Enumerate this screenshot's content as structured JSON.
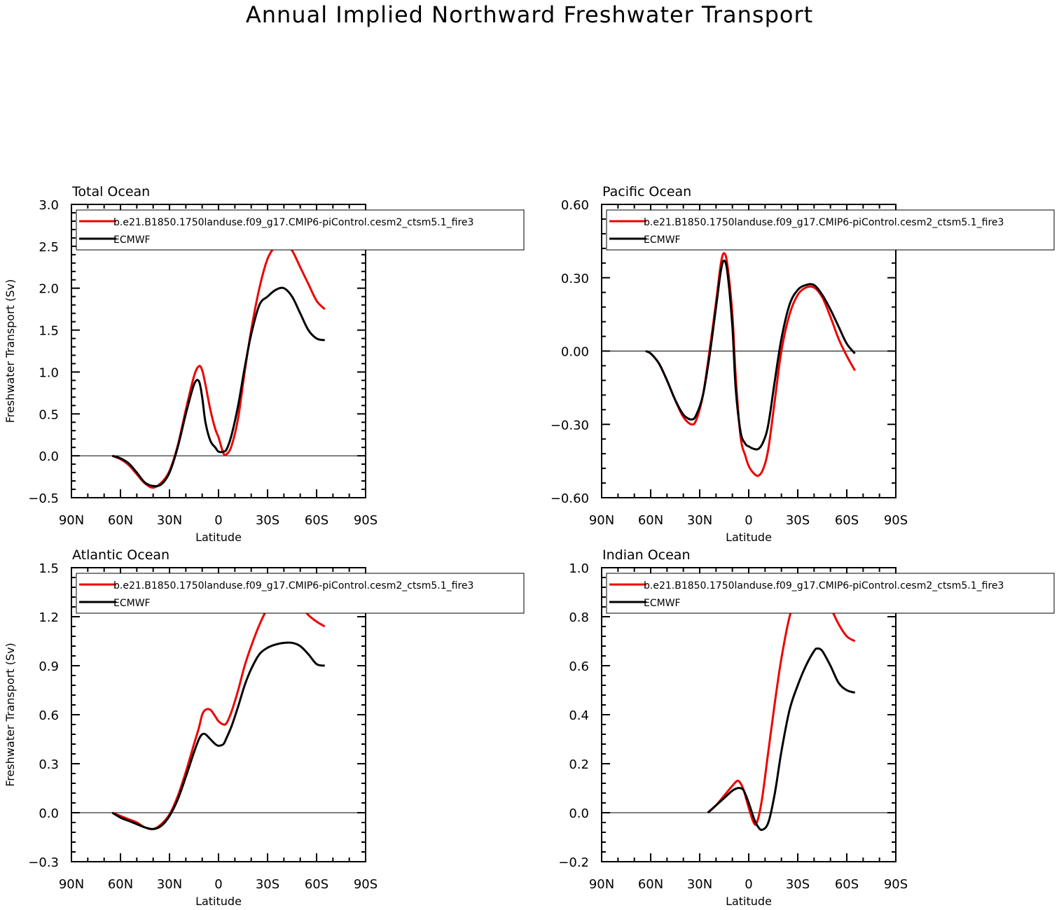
{
  "figure_title": "Annual Implied Northward Freshwater Transport",
  "colors": {
    "model": "#ee0000",
    "obs": "#000000"
  },
  "chart_data": [
    {
      "type": "line",
      "title": "Total Ocean",
      "xlabel": "Latitude",
      "ylabel": "Freshwater Transport (Sv)",
      "xlim": [
        90,
        -90
      ],
      "xticks": [
        90,
        60,
        30,
        0,
        -30,
        -60,
        -90
      ],
      "xtick_labels": [
        "90N",
        "60N",
        "30N",
        "0",
        "30S",
        "60S",
        "90S"
      ],
      "ylim": [
        -0.5,
        3.0
      ],
      "yticks": [
        -0.5,
        0.0,
        0.5,
        1.0,
        1.5,
        2.0,
        2.5,
        3.0
      ],
      "ytick_labels": [
        "−0.5",
        "0.0",
        "0.5",
        "1.0",
        "1.5",
        "2.0",
        "2.5",
        "3.0"
      ],
      "legend": {
        "placement": "top",
        "entries": [
          "b.e21.B1850.1750landuse.f09_g17.CMIP6-piControl.cesm2_ctsm5.1_fire3",
          "ECMWF"
        ]
      },
      "series": [
        {
          "name": "b.e21.B1850.1750landuse.f09_g17.CMIP6-piControl.cesm2_ctsm5.1_fire3",
          "x": [
            65,
            60,
            55,
            50,
            45,
            40,
            35,
            30,
            25,
            20,
            15,
            12,
            10,
            8,
            5,
            2,
            0,
            -3,
            -5,
            -8,
            -12,
            -16,
            -20,
            -25,
            -30,
            -35,
            -40,
            -45,
            -50,
            -55,
            -60,
            -65
          ],
          "y": [
            0.0,
            -0.04,
            -0.11,
            -0.22,
            -0.33,
            -0.38,
            -0.32,
            -0.18,
            0.12,
            0.55,
            0.95,
            1.07,
            1.02,
            0.85,
            0.55,
            0.32,
            0.22,
            0.03,
            0.02,
            0.12,
            0.45,
            1.0,
            1.5,
            2.0,
            2.35,
            2.5,
            2.55,
            2.45,
            2.25,
            2.05,
            1.85,
            1.75
          ]
        },
        {
          "name": "ECMWF",
          "x": [
            65,
            60,
            55,
            50,
            45,
            40,
            35,
            30,
            25,
            20,
            15,
            12,
            10,
            8,
            5,
            2,
            0,
            -3,
            -5,
            -8,
            -12,
            -16,
            -20,
            -25,
            -30,
            -35,
            -40,
            -45,
            -50,
            -55,
            -60,
            -65
          ],
          "y": [
            0.0,
            -0.03,
            -0.09,
            -0.2,
            -0.32,
            -0.36,
            -0.34,
            -0.2,
            0.1,
            0.5,
            0.85,
            0.89,
            0.7,
            0.4,
            0.18,
            0.1,
            0.05,
            0.05,
            0.08,
            0.25,
            0.6,
            1.05,
            1.45,
            1.8,
            1.9,
            1.98,
            2.0,
            1.9,
            1.7,
            1.5,
            1.4,
            1.38
          ]
        }
      ]
    },
    {
      "type": "line",
      "title": "Pacific Ocean",
      "xlabel": "Latitude",
      "ylabel": "",
      "xlim": [
        90,
        -90
      ],
      "xticks": [
        90,
        60,
        30,
        0,
        -30,
        -60,
        -90
      ],
      "xtick_labels": [
        "90N",
        "60N",
        "30N",
        "0",
        "30S",
        "60S",
        "90S"
      ],
      "ylim": [
        -0.6,
        0.6
      ],
      "yticks": [
        -0.6,
        -0.3,
        0.0,
        0.3,
        0.6
      ],
      "ytick_labels": [
        "−0.60",
        "−0.30",
        "0.00",
        "0.30",
        "0.60"
      ],
      "legend": {
        "placement": "top",
        "entries": [
          "b.e21.B1850.1750landuse.f09_g17.CMIP6-piControl.cesm2_ctsm5.1_fire3",
          "ECMWF"
        ]
      },
      "series": [
        {
          "name": "b.e21.B1850.1750landuse.f09_g17.CMIP6-piControl.cesm2_ctsm5.1_fire3",
          "x": [
            63,
            60,
            55,
            50,
            45,
            40,
            35,
            32,
            28,
            24,
            20,
            17,
            15,
            13,
            10,
            8,
            5,
            2,
            0,
            -3,
            -6,
            -9,
            -12,
            -16,
            -20,
            -25,
            -30,
            -35,
            -40,
            -45,
            -50,
            -55,
            -60,
            -65
          ],
          "y": [
            0.0,
            -0.01,
            -0.05,
            -0.12,
            -0.2,
            -0.27,
            -0.3,
            -0.28,
            -0.18,
            0.0,
            0.2,
            0.36,
            0.4,
            0.35,
            0.15,
            -0.1,
            -0.35,
            -0.43,
            -0.47,
            -0.5,
            -0.51,
            -0.48,
            -0.4,
            -0.2,
            0.0,
            0.15,
            0.23,
            0.26,
            0.26,
            0.22,
            0.14,
            0.05,
            -0.02,
            -0.08
          ]
        },
        {
          "name": "ECMWF",
          "x": [
            63,
            60,
            55,
            50,
            45,
            40,
            35,
            32,
            28,
            24,
            20,
            17,
            15,
            13,
            10,
            8,
            5,
            2,
            0,
            -3,
            -6,
            -9,
            -12,
            -16,
            -20,
            -25,
            -30,
            -35,
            -40,
            -45,
            -50,
            -55,
            -60,
            -65
          ],
          "y": [
            0.0,
            -0.01,
            -0.05,
            -0.12,
            -0.2,
            -0.26,
            -0.28,
            -0.26,
            -0.18,
            -0.02,
            0.18,
            0.33,
            0.37,
            0.32,
            0.1,
            -0.15,
            -0.33,
            -0.38,
            -0.39,
            -0.4,
            -0.4,
            -0.37,
            -0.3,
            -0.12,
            0.05,
            0.19,
            0.25,
            0.27,
            0.27,
            0.23,
            0.17,
            0.1,
            0.03,
            -0.01
          ]
        }
      ]
    },
    {
      "type": "line",
      "title": "Atlantic Ocean",
      "xlabel": "Latitude",
      "ylabel": "Freshwater Transport (Sv)",
      "xlim": [
        90,
        -90
      ],
      "xticks": [
        90,
        60,
        30,
        0,
        -30,
        -60,
        -90
      ],
      "xtick_labels": [
        "90N",
        "60N",
        "30N",
        "0",
        "30S",
        "60S",
        "90S"
      ],
      "ylim": [
        -0.3,
        1.5
      ],
      "yticks": [
        -0.3,
        0.0,
        0.3,
        0.6,
        0.9,
        1.2,
        1.5
      ],
      "ytick_labels": [
        "−0.3",
        "0.0",
        "0.3",
        "0.6",
        "0.9",
        "1.2",
        "1.5"
      ],
      "legend": {
        "placement": "top",
        "entries": [
          "b.e21.B1850.1750landuse.f09_g17.CMIP6-piControl.cesm2_ctsm5.1_fire3",
          "ECMWF"
        ]
      },
      "series": [
        {
          "name": "b.e21.B1850.1750landuse.f09_g17.CMIP6-piControl.cesm2_ctsm5.1_fire3",
          "x": [
            65,
            60,
            55,
            50,
            45,
            40,
            35,
            30,
            25,
            20,
            15,
            12,
            10,
            8,
            5,
            2,
            0,
            -3,
            -5,
            -8,
            -12,
            -16,
            -20,
            -25,
            -30,
            -35,
            -40,
            -45,
            -50,
            -55,
            -60,
            -65
          ],
          "y": [
            0.0,
            -0.02,
            -0.04,
            -0.06,
            -0.09,
            -0.1,
            -0.07,
            -0.01,
            0.1,
            0.25,
            0.42,
            0.52,
            0.6,
            0.63,
            0.63,
            0.59,
            0.56,
            0.54,
            0.55,
            0.62,
            0.75,
            0.9,
            1.02,
            1.15,
            1.25,
            1.3,
            1.33,
            1.32,
            1.27,
            1.21,
            1.17,
            1.14
          ]
        },
        {
          "name": "ECMWF",
          "x": [
            65,
            60,
            55,
            50,
            45,
            40,
            35,
            30,
            25,
            20,
            15,
            12,
            10,
            8,
            5,
            2,
            0,
            -3,
            -5,
            -8,
            -12,
            -16,
            -20,
            -25,
            -30,
            -35,
            -40,
            -45,
            -50,
            -55,
            -60,
            -65
          ],
          "y": [
            0.0,
            -0.03,
            -0.05,
            -0.07,
            -0.09,
            -0.1,
            -0.08,
            -0.02,
            0.08,
            0.22,
            0.37,
            0.45,
            0.48,
            0.48,
            0.45,
            0.42,
            0.41,
            0.42,
            0.46,
            0.53,
            0.65,
            0.78,
            0.88,
            0.97,
            1.01,
            1.03,
            1.04,
            1.04,
            1.02,
            0.97,
            0.91,
            0.9
          ]
        }
      ]
    },
    {
      "type": "line",
      "title": "Indian Ocean",
      "xlabel": "Latitude",
      "ylabel": "",
      "xlim": [
        90,
        -90
      ],
      "xticks": [
        90,
        60,
        30,
        0,
        -30,
        -60,
        -90
      ],
      "xtick_labels": [
        "90N",
        "60N",
        "30N",
        "0",
        "30S",
        "60S",
        "90S"
      ],
      "ylim": [
        -0.2,
        1.0
      ],
      "yticks": [
        -0.2,
        0.0,
        0.2,
        0.4,
        0.6,
        0.8,
        1.0
      ],
      "ytick_labels": [
        "−0.2",
        "0.0",
        "0.2",
        "0.4",
        "0.6",
        "0.8",
        "1.0"
      ],
      "legend": {
        "placement": "top",
        "entries": [
          "b.e21.B1850.1750landuse.f09_g17.CMIP6-piControl.cesm2_ctsm5.1_fire3",
          "ECMWF"
        ]
      },
      "series": [
        {
          "name": "b.e21.B1850.1750landuse.f09_g17.CMIP6-piControl.cesm2_ctsm5.1_fire3",
          "x": [
            25,
            20,
            15,
            10,
            7,
            5,
            3,
            0,
            -3,
            -5,
            -8,
            -12,
            -16,
            -20,
            -25,
            -30,
            -35,
            -40,
            -42,
            -45,
            -50,
            -55,
            -60,
            -65
          ],
          "y": [
            0.0,
            0.03,
            0.07,
            0.11,
            0.13,
            0.12,
            0.09,
            0.02,
            -0.04,
            -0.04,
            0.05,
            0.25,
            0.45,
            0.63,
            0.8,
            0.9,
            0.94,
            0.96,
            0.95,
            0.92,
            0.84,
            0.77,
            0.72,
            0.7
          ]
        },
        {
          "name": "ECMWF",
          "x": [
            25,
            20,
            15,
            10,
            7,
            5,
            3,
            0,
            -3,
            -5,
            -8,
            -12,
            -16,
            -20,
            -25,
            -30,
            -35,
            -40,
            -42,
            -45,
            -50,
            -55,
            -60,
            -65
          ],
          "y": [
            0.0,
            0.03,
            0.06,
            0.09,
            0.1,
            0.1,
            0.09,
            0.04,
            -0.02,
            -0.05,
            -0.07,
            -0.04,
            0.08,
            0.25,
            0.42,
            0.52,
            0.6,
            0.66,
            0.67,
            0.66,
            0.6,
            0.53,
            0.5,
            0.49
          ]
        }
      ]
    }
  ]
}
